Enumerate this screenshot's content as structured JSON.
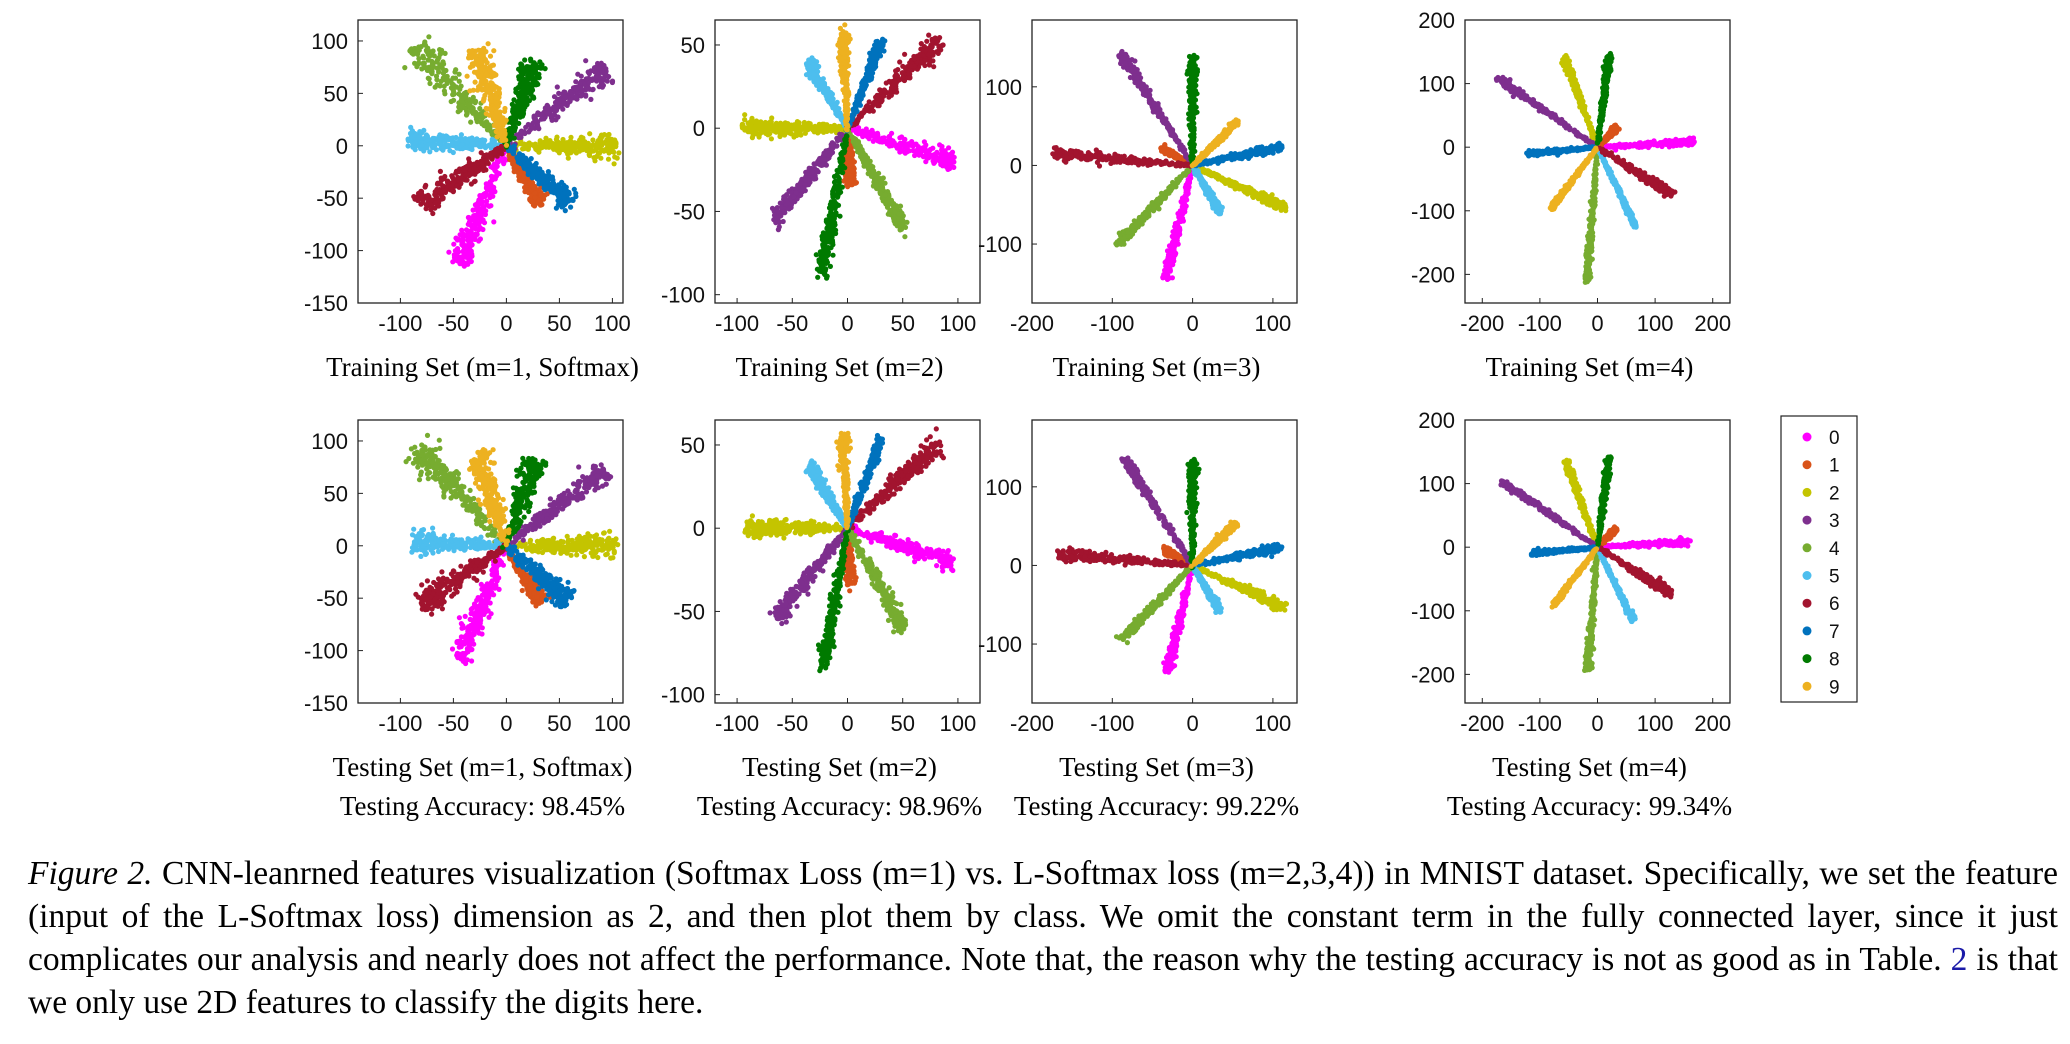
{
  "chart_data": {
    "type": "scatter",
    "legend": {
      "placement": "right",
      "entries": [
        "0",
        "1",
        "2",
        "3",
        "4",
        "5",
        "6",
        "7",
        "8",
        "9"
      ],
      "colors": [
        "#ff00ff",
        "#d95319",
        "#c4c400",
        "#7e2f8e",
        "#77ac30",
        "#4dbeee",
        "#a2142f",
        "#0072bd",
        "#007a00",
        "#edb120"
      ]
    },
    "panels": [
      {
        "id": "train-m1",
        "row": 0,
        "col": 0,
        "title": "Training Set (m=1, Softmax)",
        "accuracy": "",
        "xlim": [
          -140,
          110
        ],
        "ylim": [
          -150,
          120
        ],
        "xticks": [
          -100,
          -50,
          0,
          50,
          100
        ],
        "yticks": [
          -150,
          -100,
          -50,
          0,
          50,
          100
        ],
        "clusters": [
          {
            "class": 0,
            "angle_deg": -112,
            "length": 122,
            "width": 8
          },
          {
            "class": 1,
            "angle_deg": -60,
            "length": 62,
            "width": 5
          },
          {
            "class": 2,
            "angle_deg": 0,
            "length": 103,
            "width": 8
          },
          {
            "class": 3,
            "angle_deg": 38,
            "length": 120,
            "width": 8
          },
          {
            "class": 4,
            "angle_deg": 132,
            "length": 128,
            "width": 10
          },
          {
            "class": 5,
            "angle_deg": 177,
            "length": 92,
            "width": 7
          },
          {
            "class": 6,
            "angle_deg": -145,
            "length": 98,
            "width": 9
          },
          {
            "class": 7,
            "angle_deg": -42,
            "length": 80,
            "width": 7
          },
          {
            "class": 8,
            "angle_deg": 72,
            "length": 85,
            "width": 8
          },
          {
            "class": 9,
            "angle_deg": 108,
            "length": 96,
            "width": 9
          }
        ]
      },
      {
        "id": "train-m2",
        "row": 0,
        "col": 1,
        "title": "Training Set (m=2)",
        "accuracy": "",
        "xlim": [
          -120,
          120
        ],
        "ylim": [
          -105,
          65
        ],
        "xticks": [
          -100,
          -50,
          0,
          50,
          100
        ],
        "yticks": [
          -100,
          -50,
          0,
          50
        ],
        "clusters": [
          {
            "class": 0,
            "angle_deg": -12,
            "length": 98,
            "width": 4
          },
          {
            "class": 1,
            "angle_deg": -85,
            "length": 33,
            "width": 3
          },
          {
            "class": 2,
            "angle_deg": 180,
            "length": 95,
            "width": 4
          },
          {
            "class": 3,
            "angle_deg": -140,
            "length": 85,
            "width": 4
          },
          {
            "class": 4,
            "angle_deg": -50,
            "length": 80,
            "width": 4
          },
          {
            "class": 5,
            "angle_deg": 132,
            "length": 52,
            "width": 3
          },
          {
            "class": 6,
            "angle_deg": 32,
            "length": 100,
            "width": 5
          },
          {
            "class": 7,
            "angle_deg": 60,
            "length": 60,
            "width": 3
          },
          {
            "class": 8,
            "angle_deg": -105,
            "length": 90,
            "width": 4
          },
          {
            "class": 9,
            "angle_deg": 94,
            "length": 58,
            "width": 3
          }
        ]
      },
      {
        "id": "train-m3",
        "row": 0,
        "col": 2,
        "title": "Training Set (m=3)",
        "accuracy": "",
        "xlim": [
          -200,
          130
        ],
        "ylim": [
          -175,
          185
        ],
        "xticks": [
          -200,
          -100,
          0,
          100
        ],
        "yticks": [
          -100,
          0,
          100
        ],
        "clusters": [
          {
            "class": 0,
            "angle_deg": -103,
            "length": 148,
            "width": 4
          },
          {
            "class": 1,
            "angle_deg": 150,
            "length": 42,
            "width": 3
          },
          {
            "class": 2,
            "angle_deg": -25,
            "length": 128,
            "width": 4
          },
          {
            "class": 3,
            "angle_deg": 122,
            "length": 168,
            "width": 4
          },
          {
            "class": 4,
            "angle_deg": -133,
            "length": 135,
            "width": 4
          },
          {
            "class": 5,
            "angle_deg": -60,
            "length": 68,
            "width": 3
          },
          {
            "class": 6,
            "angle_deg": 175,
            "length": 175,
            "width": 5
          },
          {
            "class": 7,
            "angle_deg": 12,
            "length": 112,
            "width": 4
          },
          {
            "class": 8,
            "angle_deg": 90,
            "length": 138,
            "width": 4
          },
          {
            "class": 9,
            "angle_deg": 45,
            "length": 78,
            "width": 3
          }
        ]
      },
      {
        "id": "train-m4",
        "row": 0,
        "col": 3,
        "title": "Training Set (m=4)",
        "accuracy": "",
        "xlim": [
          -230,
          230
        ],
        "ylim": [
          -245,
          200
        ],
        "xticks": [
          -200,
          -100,
          0,
          100,
          200
        ],
        "yticks": [
          -200,
          -100,
          0,
          100,
          200
        ],
        "clusters": [
          {
            "class": 0,
            "angle_deg": 3,
            "length": 168,
            "width": 4
          },
          {
            "class": 1,
            "angle_deg": 42,
            "length": 45,
            "width": 3
          },
          {
            "class": 2,
            "angle_deg": 112,
            "length": 150,
            "width": 4
          },
          {
            "class": 3,
            "angle_deg": 148,
            "length": 205,
            "width": 4
          },
          {
            "class": 4,
            "angle_deg": -95,
            "length": 212,
            "width": 4
          },
          {
            "class": 5,
            "angle_deg": -62,
            "length": 140,
            "width": 3
          },
          {
            "class": 6,
            "angle_deg": -30,
            "length": 150,
            "width": 5
          },
          {
            "class": 7,
            "angle_deg": -175,
            "length": 122,
            "width": 3
          },
          {
            "class": 8,
            "angle_deg": 82,
            "length": 148,
            "width": 4
          },
          {
            "class": 9,
            "angle_deg": -130,
            "length": 125,
            "width": 3
          }
        ]
      },
      {
        "id": "test-m1",
        "row": 1,
        "col": 0,
        "title": "Testing Set (m=1, Softmax)",
        "accuracy": "Testing Accuracy: 98.45%",
        "xlim": [
          -140,
          110
        ],
        "ylim": [
          -150,
          120
        ],
        "xticks": [
          -100,
          -50,
          0,
          50,
          100
        ],
        "yticks": [
          -150,
          -100,
          -50,
          0,
          50,
          100
        ],
        "clusters": [
          {
            "class": 0,
            "angle_deg": -112,
            "length": 118,
            "width": 8
          },
          {
            "class": 1,
            "angle_deg": -60,
            "length": 62,
            "width": 5
          },
          {
            "class": 2,
            "angle_deg": 0,
            "length": 103,
            "width": 8
          },
          {
            "class": 3,
            "angle_deg": 38,
            "length": 118,
            "width": 8
          },
          {
            "class": 4,
            "angle_deg": 132,
            "length": 126,
            "width": 10
          },
          {
            "class": 5,
            "angle_deg": 177,
            "length": 88,
            "width": 7
          },
          {
            "class": 6,
            "angle_deg": -145,
            "length": 96,
            "width": 9
          },
          {
            "class": 7,
            "angle_deg": -42,
            "length": 78,
            "width": 7
          },
          {
            "class": 8,
            "angle_deg": 72,
            "length": 85,
            "width": 8
          },
          {
            "class": 9,
            "angle_deg": 108,
            "length": 92,
            "width": 9
          }
        ]
      },
      {
        "id": "test-m2",
        "row": 1,
        "col": 1,
        "title": "Testing Set (m=2)",
        "accuracy": "Testing Accuracy: 98.96%",
        "xlim": [
          -120,
          120
        ],
        "ylim": [
          -105,
          65
        ],
        "xticks": [
          -100,
          -50,
          0,
          50,
          100
        ],
        "yticks": [
          -100,
          -50,
          0,
          50
        ],
        "clusters": [
          {
            "class": 0,
            "angle_deg": -12,
            "length": 96,
            "width": 4
          },
          {
            "class": 1,
            "angle_deg": -85,
            "length": 32,
            "width": 3
          },
          {
            "class": 2,
            "angle_deg": 180,
            "length": 92,
            "width": 4
          },
          {
            "class": 3,
            "angle_deg": -140,
            "length": 84,
            "width": 4
          },
          {
            "class": 4,
            "angle_deg": -50,
            "length": 78,
            "width": 4
          },
          {
            "class": 5,
            "angle_deg": 132,
            "length": 50,
            "width": 3
          },
          {
            "class": 6,
            "angle_deg": 32,
            "length": 98,
            "width": 5
          },
          {
            "class": 7,
            "angle_deg": 60,
            "length": 60,
            "width": 3
          },
          {
            "class": 8,
            "angle_deg": -105,
            "length": 86,
            "width": 4
          },
          {
            "class": 9,
            "angle_deg": 94,
            "length": 56,
            "width": 3
          }
        ]
      },
      {
        "id": "test-m3",
        "row": 1,
        "col": 2,
        "title": "Testing Set (m=3)",
        "accuracy": "Testing Accuracy: 99.22%",
        "xlim": [
          -200,
          130
        ],
        "ylim": [
          -175,
          185
        ],
        "xticks": [
          -200,
          -100,
          0,
          100
        ],
        "yticks": [
          -100,
          0,
          100
        ],
        "clusters": [
          {
            "class": 0,
            "angle_deg": -103,
            "length": 140,
            "width": 4
          },
          {
            "class": 1,
            "angle_deg": 150,
            "length": 40,
            "width": 3
          },
          {
            "class": 2,
            "angle_deg": -25,
            "length": 125,
            "width": 4
          },
          {
            "class": 3,
            "angle_deg": 122,
            "length": 160,
            "width": 4
          },
          {
            "class": 4,
            "angle_deg": -133,
            "length": 130,
            "width": 4
          },
          {
            "class": 5,
            "angle_deg": -60,
            "length": 66,
            "width": 3
          },
          {
            "class": 6,
            "angle_deg": 175,
            "length": 168,
            "width": 5
          },
          {
            "class": 7,
            "angle_deg": 12,
            "length": 110,
            "width": 4
          },
          {
            "class": 8,
            "angle_deg": 90,
            "length": 132,
            "width": 4
          },
          {
            "class": 9,
            "angle_deg": 45,
            "length": 76,
            "width": 3
          }
        ]
      },
      {
        "id": "test-m4",
        "row": 1,
        "col": 3,
        "title": "Testing Set (m=4)",
        "accuracy": "Testing Accuracy: 99.34%",
        "xlim": [
          -230,
          230
        ],
        "ylim": [
          -245,
          200
        ],
        "xticks": [
          -200,
          -100,
          0,
          100,
          200
        ],
        "yticks": [
          -200,
          -100,
          0,
          100,
          200
        ],
        "clusters": [
          {
            "class": 0,
            "angle_deg": 3,
            "length": 160,
            "width": 4
          },
          {
            "class": 1,
            "angle_deg": 42,
            "length": 42,
            "width": 3
          },
          {
            "class": 2,
            "angle_deg": 112,
            "length": 145,
            "width": 4
          },
          {
            "class": 3,
            "angle_deg": 148,
            "length": 195,
            "width": 4
          },
          {
            "class": 4,
            "angle_deg": -95,
            "length": 195,
            "width": 4
          },
          {
            "class": 5,
            "angle_deg": -62,
            "length": 130,
            "width": 3
          },
          {
            "class": 6,
            "angle_deg": -30,
            "length": 145,
            "width": 5
          },
          {
            "class": 7,
            "angle_deg": -175,
            "length": 115,
            "width": 3
          },
          {
            "class": 8,
            "angle_deg": 82,
            "length": 142,
            "width": 4
          },
          {
            "class": 9,
            "angle_deg": -130,
            "length": 120,
            "width": 3
          }
        ]
      }
    ]
  },
  "caption": {
    "label": "Figure 2.",
    "text_before_ref": " CNN-leanrned features visualization (Softmax Loss (m=1) vs.  L-Softmax loss (m=2,3,4)) in MNIST dataset.  Specifically, we set the feature (input of the L-Softmax loss) dimension as 2, and then plot them by class.  We omit the constant term in the fully connected layer, since it just complicates our analysis and nearly does not affect the performance. Note that, the reason why the testing accuracy is not as good as in Table. ",
    "ref": "2",
    "text_after_ref": " is that we only use 2D features to classify the digits here."
  }
}
